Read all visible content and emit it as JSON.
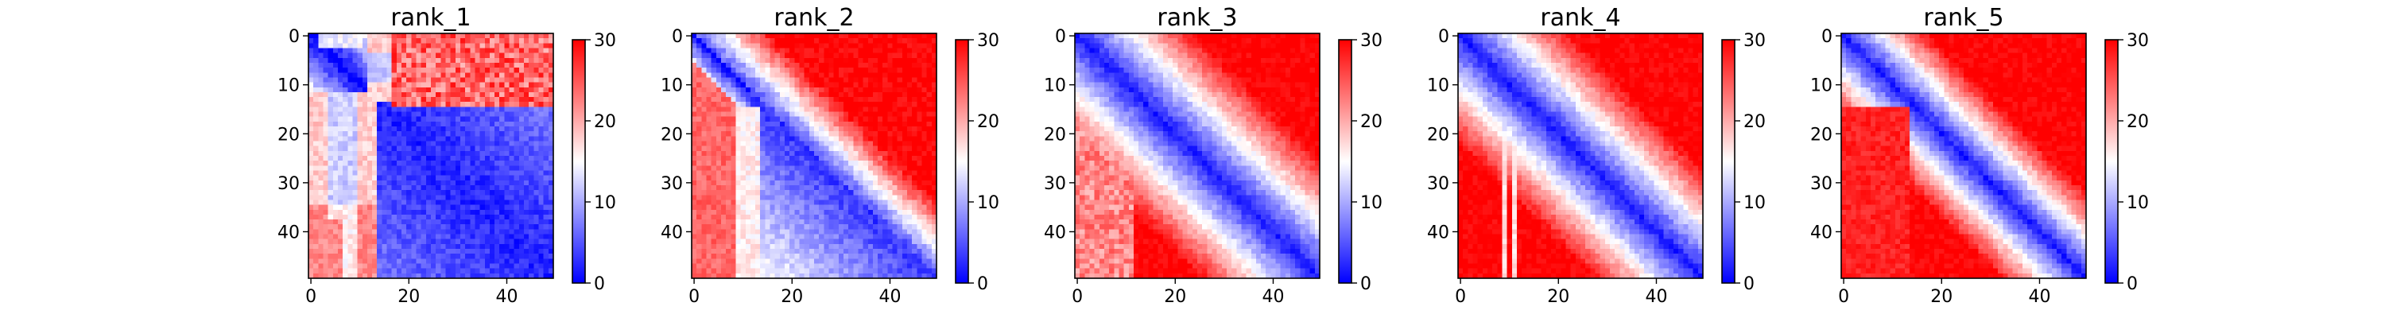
{
  "colors": {
    "cmap": "bwr",
    "low": "#0000ff",
    "mid": "#ffffff",
    "high": "#ff0000"
  },
  "chart_data": [
    {
      "type": "heatmap",
      "title": "rank_1",
      "n": 50,
      "x_ticks": [
        0,
        20,
        40
      ],
      "y_ticks": [
        0,
        10,
        20,
        30,
        40
      ],
      "colorbar": {
        "range": [
          0,
          30
        ],
        "ticks": [
          0,
          10,
          20,
          30
        ]
      },
      "structure": "mostly low distances (blue) in the lower-right block, high (red) in the upper-right block over residues 0-14 vs 18-49, light band near residues 8-14, red strip at bottom-left near residues 2-6"
    },
    {
      "type": "heatmap",
      "title": "rank_2",
      "n": 50,
      "x_ticks": [
        0,
        20,
        40
      ],
      "y_ticks": [
        0,
        10,
        20,
        30,
        40
      ],
      "colorbar": {
        "range": [
          0,
          30
        ],
        "ticks": [
          0,
          10,
          20,
          30
        ]
      },
      "structure": "blue diagonal, red upper-right, red left-bottom block for residues 0-12, blue-ish lower-right block"
    },
    {
      "type": "heatmap",
      "title": "rank_3",
      "n": 50,
      "x_ticks": [
        0,
        20,
        40
      ],
      "y_ticks": [
        0,
        10,
        20,
        30,
        40
      ],
      "colorbar": {
        "range": [
          0,
          30
        ],
        "ticks": [
          0,
          10,
          20,
          30
        ]
      },
      "structure": "dark blue diagonal band, distance increasing away from diagonal to red"
    },
    {
      "type": "heatmap",
      "title": "rank_4",
      "n": 50,
      "x_ticks": [
        0,
        20,
        40
      ],
      "y_ticks": [
        0,
        10,
        20,
        30,
        40
      ],
      "colorbar": {
        "range": [
          0,
          30
        ],
        "ticks": [
          0,
          10,
          20,
          30
        ]
      },
      "structure": "dark blue diagonal band, red off-diagonal, white streaks near residues 8-12"
    },
    {
      "type": "heatmap",
      "title": "rank_5",
      "n": 50,
      "x_ticks": [
        0,
        20,
        40
      ],
      "y_ticks": [
        0,
        10,
        20,
        30,
        40
      ],
      "colorbar": {
        "range": [
          0,
          30
        ],
        "ticks": [
          0,
          10,
          20,
          30
        ]
      },
      "structure": "dark blue diagonal band, strongly red off-diagonal"
    }
  ]
}
